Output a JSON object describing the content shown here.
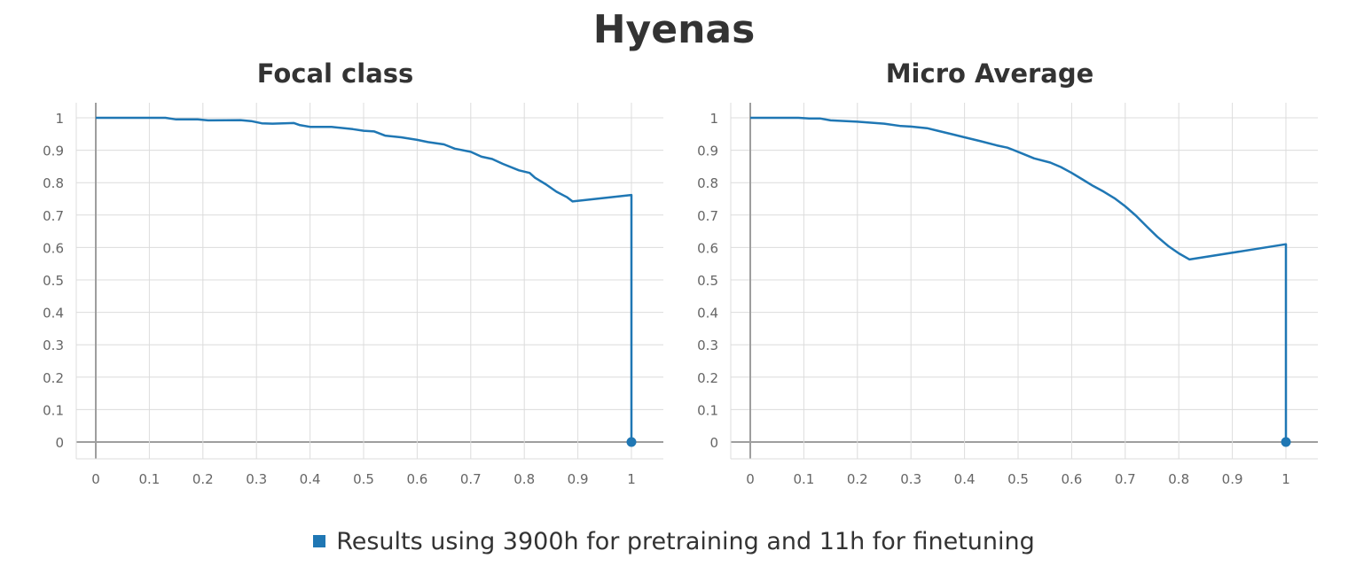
{
  "title": "Hyenas",
  "legend": {
    "label": "Results using 3900h for pretraining and 11h for finetuning",
    "color": "#1f77b4"
  },
  "chart_data": [
    {
      "type": "line",
      "title": "Focal class",
      "xlabel": "",
      "ylabel": "",
      "xlim": [
        0,
        1
      ],
      "ylim": [
        0,
        1
      ],
      "x_ticks": [
        "0",
        "0.1",
        "0.2",
        "0.3",
        "0.4",
        "0.5",
        "0.6",
        "0.7",
        "0.8",
        "0.9",
        "1"
      ],
      "y_ticks": [
        "0",
        "0.1",
        "0.2",
        "0.3",
        "0.4",
        "0.5",
        "0.6",
        "0.7",
        "0.8",
        "0.9",
        "1"
      ],
      "grid": true,
      "series": [
        {
          "color": "#1f77b4",
          "x": [
            0,
            0.13,
            0.15,
            0.19,
            0.21,
            0.27,
            0.29,
            0.31,
            0.33,
            0.37,
            0.38,
            0.4,
            0.44,
            0.48,
            0.5,
            0.52,
            0.54,
            0.57,
            0.6,
            0.62,
            0.65,
            0.67,
            0.7,
            0.72,
            0.74,
            0.76,
            0.79,
            0.81,
            0.82,
            0.84,
            0.86,
            0.88,
            0.89,
            1,
            1
          ],
          "y": [
            1,
            1,
            0.995,
            0.995,
            0.992,
            0.993,
            0.99,
            0.983,
            0.982,
            0.984,
            0.978,
            0.972,
            0.972,
            0.965,
            0.96,
            0.958,
            0.945,
            0.94,
            0.932,
            0.925,
            0.918,
            0.905,
            0.895,
            0.88,
            0.873,
            0.858,
            0.838,
            0.83,
            0.815,
            0.795,
            0.772,
            0.755,
            0.742,
            0.762,
            0
          ],
          "marker": {
            "x": 1,
            "y": 0
          }
        }
      ]
    },
    {
      "type": "line",
      "title": "Micro Average",
      "xlabel": "",
      "ylabel": "",
      "xlim": [
        0,
        1
      ],
      "ylim": [
        0,
        1
      ],
      "x_ticks": [
        "0",
        "0.1",
        "0.2",
        "0.3",
        "0.4",
        "0.5",
        "0.6",
        "0.7",
        "0.8",
        "0.9",
        "1"
      ],
      "y_ticks": [
        "0",
        "0.1",
        "0.2",
        "0.3",
        "0.4",
        "0.5",
        "0.6",
        "0.7",
        "0.8",
        "0.9",
        "1"
      ],
      "grid": true,
      "series": [
        {
          "color": "#1f77b4",
          "x": [
            0,
            0.09,
            0.11,
            0.13,
            0.15,
            0.2,
            0.25,
            0.28,
            0.3,
            0.33,
            0.35,
            0.38,
            0.4,
            0.43,
            0.46,
            0.48,
            0.5,
            0.53,
            0.56,
            0.58,
            0.6,
            0.62,
            0.64,
            0.66,
            0.68,
            0.7,
            0.72,
            0.74,
            0.76,
            0.78,
            0.8,
            0.82,
            1,
            1
          ],
          "y": [
            1,
            1,
            0.998,
            0.998,
            0.992,
            0.988,
            0.982,
            0.975,
            0.973,
            0.968,
            0.96,
            0.948,
            0.94,
            0.928,
            0.915,
            0.908,
            0.895,
            0.875,
            0.862,
            0.848,
            0.83,
            0.81,
            0.79,
            0.772,
            0.752,
            0.727,
            0.698,
            0.665,
            0.633,
            0.605,
            0.582,
            0.563,
            0.61,
            0
          ],
          "marker": {
            "x": 1,
            "y": 0
          }
        }
      ]
    }
  ]
}
